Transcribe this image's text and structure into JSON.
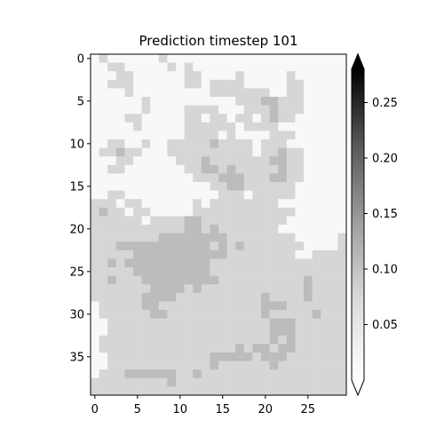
{
  "chart_data": {
    "type": "heatmap",
    "title": "Prediction timestep 101",
    "xlabel": "",
    "ylabel": "",
    "grid": false,
    "colormap": "Greys",
    "colorbar": {
      "min": 0.0,
      "max": 0.28,
      "ticks": [
        "0.05",
        "0.10",
        "0.15",
        "0.20",
        "0.25"
      ],
      "tick_values": [
        0.05,
        0.1,
        0.15,
        0.2,
        0.25
      ],
      "extend": "both"
    },
    "x_ticks": [
      "0",
      "5",
      "10",
      "15",
      "20",
      "25"
    ],
    "x_tick_values": [
      0,
      5,
      10,
      15,
      20,
      25
    ],
    "y_ticks": [
      "0",
      "5",
      "10",
      "15",
      "20",
      "25",
      "30",
      "35"
    ],
    "y_tick_values": [
      0,
      5,
      10,
      15,
      20,
      25,
      30,
      35
    ],
    "n_cols": 30,
    "n_rows": 40,
    "rows": [
      "010000001000000000000000000000",
      "001100000101000000000000000000",
      "000110000001100001000001000000",
      "001110000001101111000001100000",
      "000010000000001111111001100000",
      "000000100000000001112211100000",
      "000000100001111000111211100000",
      "000011000001101101101211000000",
      "000001000001111110111100000000",
      "000000000001111010000111000000",
      "001100100111112111101110000000",
      "011211000111111111101121100000",
      "000110000011121111111221100000",
      "001100000001122121111121100000",
      "000000000000111222111221100000",
      "000000000000001122111111000000",
      "001100000000000111011111000000",
      "111011000000101111111100000000",
      "121101100000111111111111000000",
      "111111011112211111111110000000",
      "111111111112212111111100000000",
      "111111112222222211111111000001",
      "111222222222221212111111100001",
      "111112222222222211111111001111",
      "112122222222221111111111111111",
      "111112222222221111111111111111",
      "112111222222222111111111121111",
      "111111122221211111111111121111",
      "111111222211111111112111121111",
      "011111221111111111112221111111",
      "011111122111111111112111112111",
      "001111111111111111111222111111",
      "001111111111111111111222111111",
      "011111111111111111111212111111",
      "011111111111111112122122111111",
      "001111111111112222212221111111",
      "001111111111112111111211111111",
      "011122222211211111111111111111",
      "111111111211111111111111111111",
      "111111111111111111111111111111"
    ],
    "level_values": [
      0.005,
      0.04,
      0.07
    ]
  }
}
